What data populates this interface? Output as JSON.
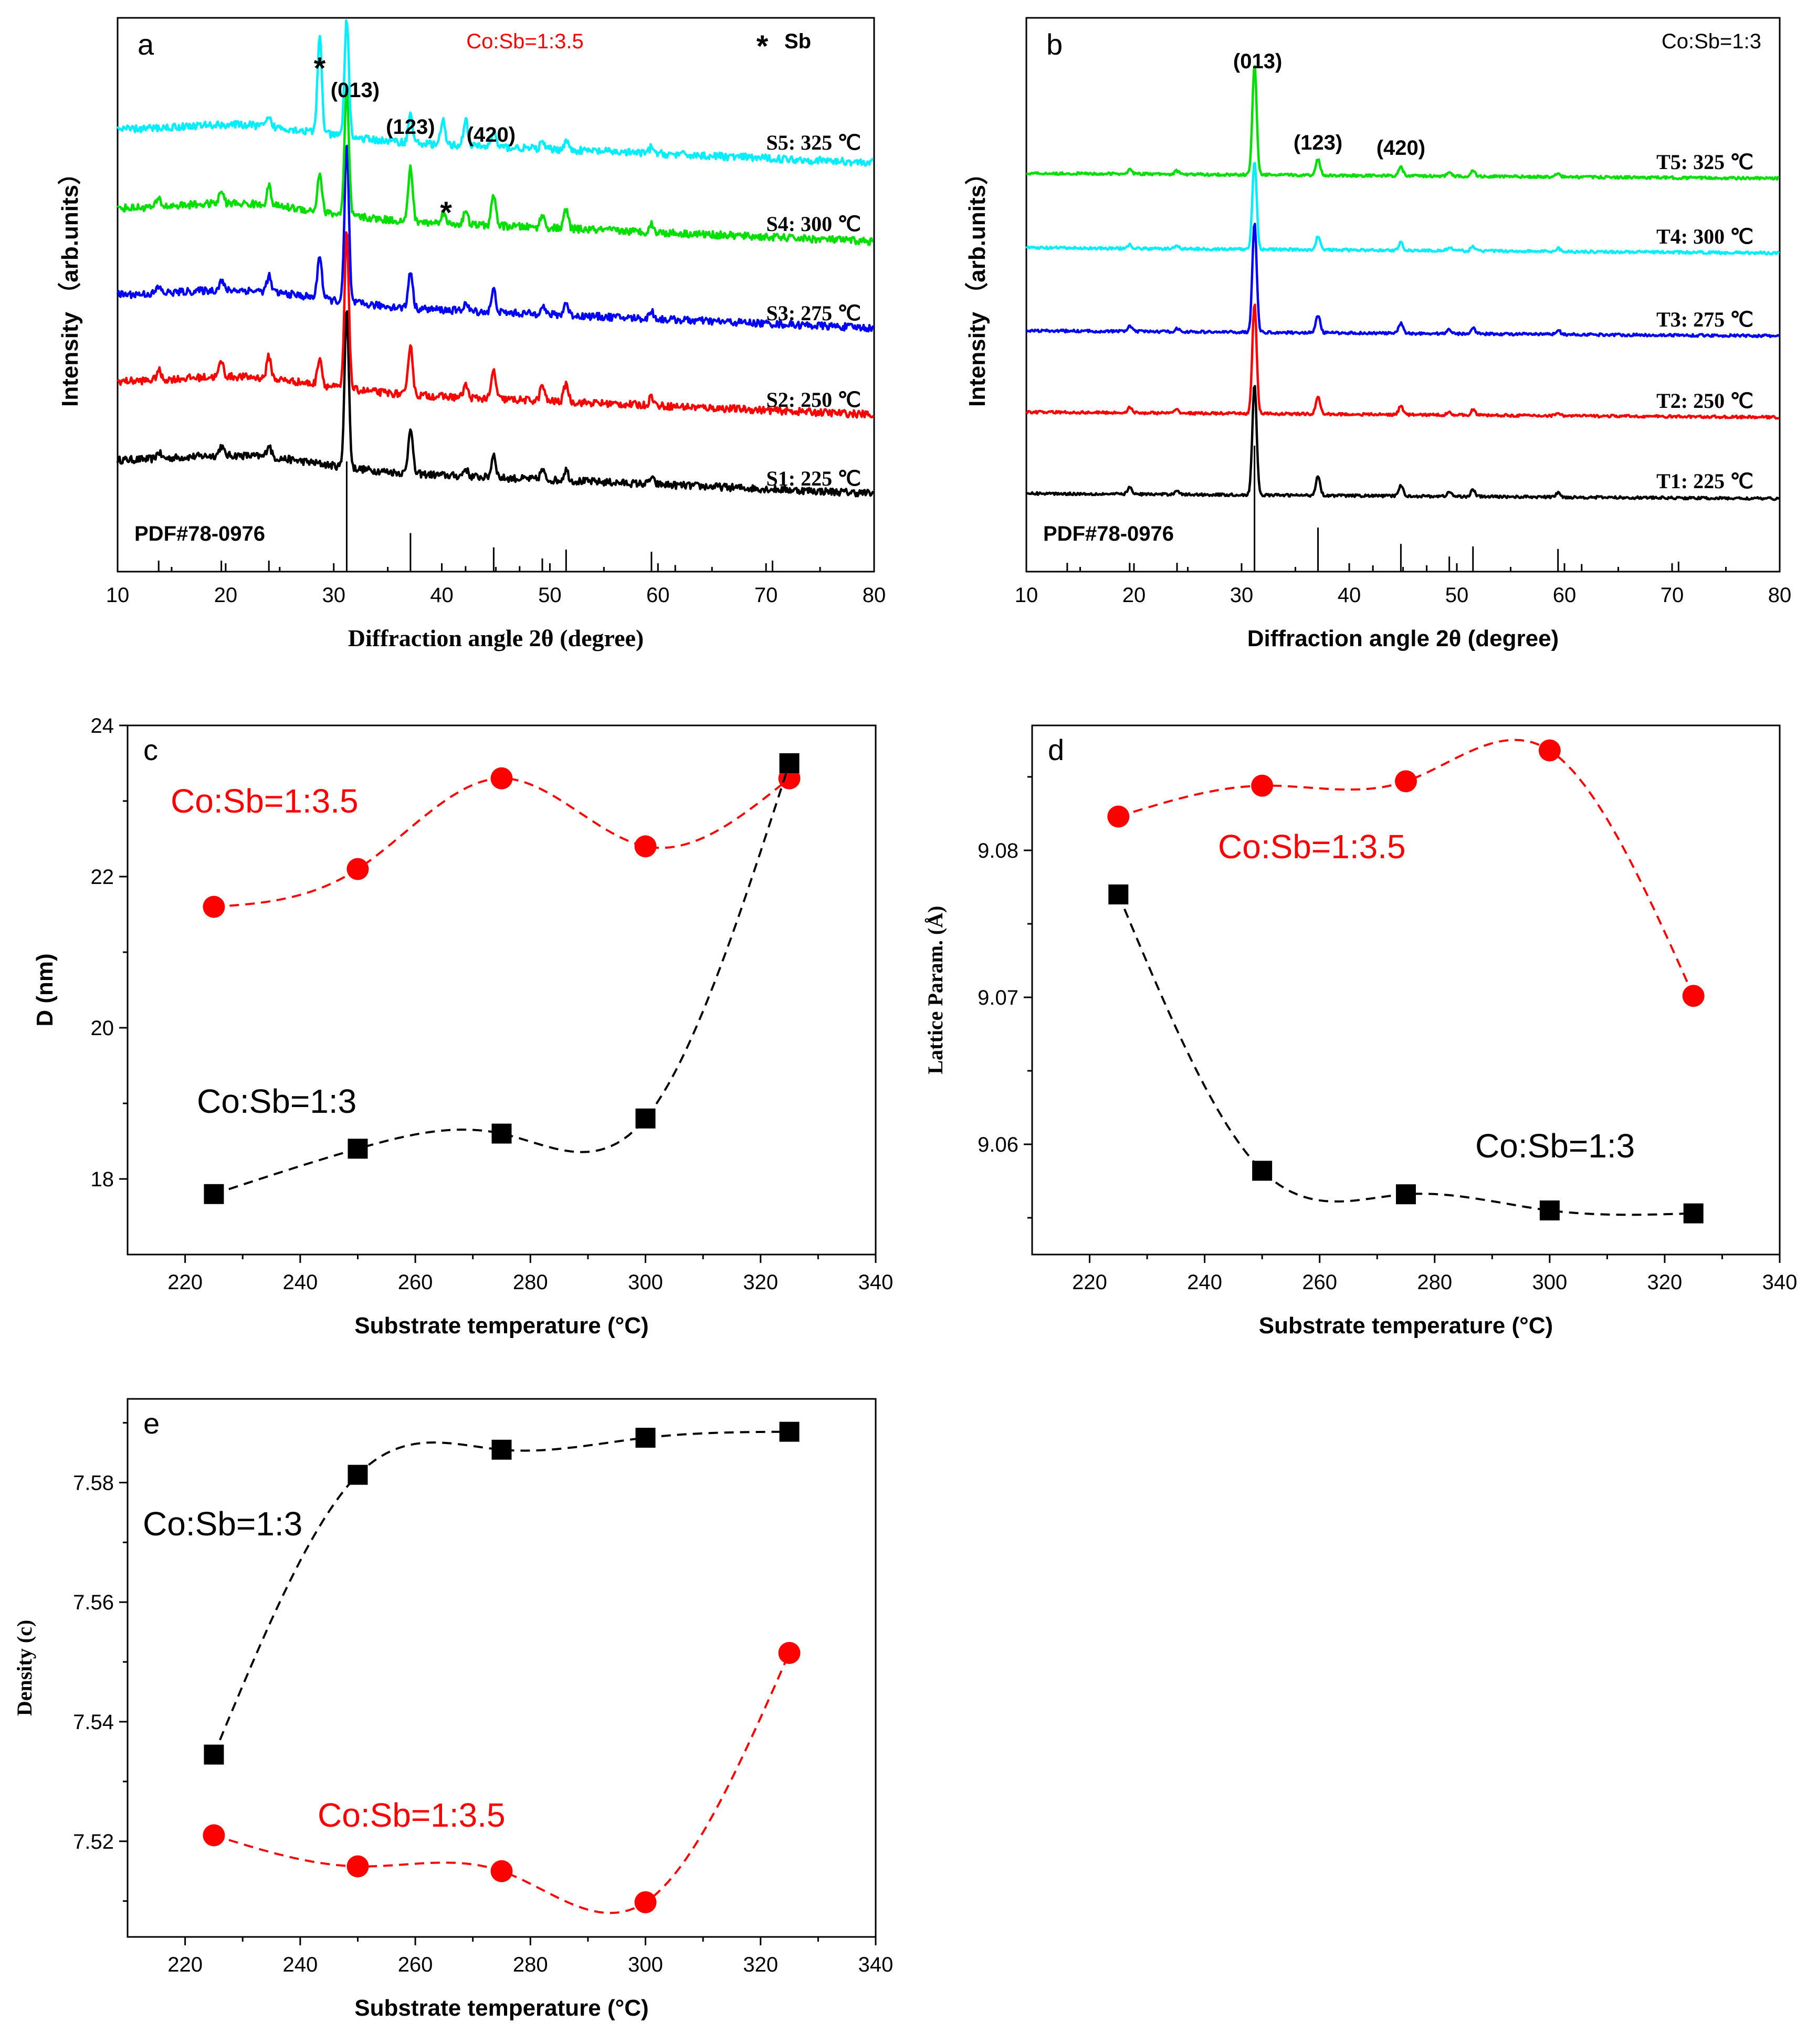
{
  "colors": {
    "black": "#000000",
    "red": "#ff0000",
    "blue": "#0000ff",
    "green": "#00e000",
    "cyan": "#00eeff",
    "dash_red": "#ff0000",
    "dash_black": "#000000"
  },
  "chart_data": [
    {
      "panel": "a",
      "type": "line",
      "title": "Co:Sb=1:3.5",
      "legend_note": "Sb",
      "xlabel": "Diffraction angle 2θ (degree)",
      "ylabel": "Intensity  （arb.units）",
      "xlim": [
        10,
        80
      ],
      "xticks": [
        10,
        20,
        30,
        40,
        50,
        60,
        70,
        80
      ],
      "reference_label": "PDF#78-0976",
      "reference_peaks": [
        {
          "x": 13.8,
          "h": 0.1
        },
        {
          "x": 19.6,
          "h": 0.1
        },
        {
          "x": 24.0,
          "h": 0.1
        },
        {
          "x": 31.2,
          "h": 1.0
        },
        {
          "x": 37.1,
          "h": 0.35
        },
        {
          "x": 42.2,
          "h": 0.05
        },
        {
          "x": 44.8,
          "h": 0.22
        },
        {
          "x": 47.2,
          "h": 0.05
        },
        {
          "x": 49.3,
          "h": 0.12
        },
        {
          "x": 51.5,
          "h": 0.2
        },
        {
          "x": 59.4,
          "h": 0.18
        },
        {
          "x": 61.6,
          "h": 0.06
        },
        {
          "x": 70.6,
          "h": 0.1
        }
      ],
      "miller_labels": [
        {
          "text": "(013)",
          "x": 31.2
        },
        {
          "text": "(123)",
          "x": 37.1
        },
        {
          "text": "(420)",
          "x": 44.8
        }
      ],
      "sb_peaks": [
        28.7,
        40.1
      ],
      "series": [
        {
          "name": "S1: 225 ℃",
          "color": "#000000",
          "peaks": [
            {
              "x": 31.2,
              "h": 1.0
            },
            {
              "x": 37.1,
              "h": 0.3
            },
            {
              "x": 44.8,
              "h": 0.15
            },
            {
              "x": 24.0,
              "h": 0.08
            },
            {
              "x": 19.6,
              "h": 0.06
            },
            {
              "x": 13.8,
              "h": 0.04
            },
            {
              "x": 42.2,
              "h": 0.05
            },
            {
              "x": 49.3,
              "h": 0.06
            },
            {
              "x": 51.5,
              "h": 0.07
            },
            {
              "x": 59.4,
              "h": 0.04
            }
          ]
        },
        {
          "name": "S2: 250 ℃",
          "color": "#ff0000",
          "peaks": [
            {
              "x": 31.2,
              "h": 1.0
            },
            {
              "x": 28.7,
              "h": 0.18
            },
            {
              "x": 37.1,
              "h": 0.33
            },
            {
              "x": 44.8,
              "h": 0.18
            },
            {
              "x": 24.0,
              "h": 0.14
            },
            {
              "x": 19.6,
              "h": 0.1
            },
            {
              "x": 13.8,
              "h": 0.06
            },
            {
              "x": 42.2,
              "h": 0.08
            },
            {
              "x": 49.3,
              "h": 0.1
            },
            {
              "x": 51.5,
              "h": 0.12
            },
            {
              "x": 59.4,
              "h": 0.06
            }
          ]
        },
        {
          "name": "S3: 275 ℃",
          "color": "#0000ff",
          "peaks": [
            {
              "x": 31.2,
              "h": 1.0
            },
            {
              "x": 28.7,
              "h": 0.28
            },
            {
              "x": 37.1,
              "h": 0.24
            },
            {
              "x": 44.8,
              "h": 0.14
            },
            {
              "x": 24.0,
              "h": 0.1
            },
            {
              "x": 19.6,
              "h": 0.06
            },
            {
              "x": 13.8,
              "h": 0.04
            },
            {
              "x": 42.2,
              "h": 0.05
            },
            {
              "x": 49.3,
              "h": 0.06
            },
            {
              "x": 51.5,
              "h": 0.08
            },
            {
              "x": 59.4,
              "h": 0.05
            }
          ]
        },
        {
          "name": "S4: 300 ℃",
          "color": "#00e000",
          "peaks": [
            {
              "x": 31.2,
              "h": 0.8
            },
            {
              "x": 28.7,
              "h": 0.25
            },
            {
              "x": 37.1,
              "h": 0.35
            },
            {
              "x": 44.8,
              "h": 0.2
            },
            {
              "x": 24.0,
              "h": 0.12
            },
            {
              "x": 19.6,
              "h": 0.08
            },
            {
              "x": 13.8,
              "h": 0.05
            },
            {
              "x": 40.1,
              "h": 0.07
            },
            {
              "x": 42.2,
              "h": 0.08
            },
            {
              "x": 49.3,
              "h": 0.08
            },
            {
              "x": 51.5,
              "h": 0.12
            },
            {
              "x": 59.4,
              "h": 0.05
            }
          ]
        },
        {
          "name": "S5: 325 ℃",
          "color": "#00eeff",
          "peaks": [
            {
              "x": 31.2,
              "h": 0.75
            },
            {
              "x": 28.7,
              "h": 0.62
            },
            {
              "x": 37.1,
              "h": 0.18
            },
            {
              "x": 40.1,
              "h": 0.15
            },
            {
              "x": 42.2,
              "h": 0.17
            },
            {
              "x": 44.8,
              "h": 0.1
            },
            {
              "x": 24.0,
              "h": 0.05
            },
            {
              "x": 49.3,
              "h": 0.04
            },
            {
              "x": 51.5,
              "h": 0.06
            },
            {
              "x": 59.4,
              "h": 0.04
            }
          ]
        }
      ]
    },
    {
      "panel": "b",
      "type": "line",
      "title": "Co:Sb=1:3",
      "xlabel": "Diffraction angle 2θ (degree)",
      "ylabel": "Intensity  （arb.units）",
      "xlim": [
        10,
        80
      ],
      "xticks": [
        10,
        20,
        30,
        40,
        50,
        60,
        70,
        80
      ],
      "reference_label": "PDF#78-0976",
      "reference_peaks": [
        {
          "x": 13.8,
          "h": 0.07
        },
        {
          "x": 19.6,
          "h": 0.07
        },
        {
          "x": 24.0,
          "h": 0.07
        },
        {
          "x": 31.2,
          "h": 1.0
        },
        {
          "x": 37.1,
          "h": 0.35
        },
        {
          "x": 42.2,
          "h": 0.05
        },
        {
          "x": 44.8,
          "h": 0.22
        },
        {
          "x": 47.2,
          "h": 0.05
        },
        {
          "x": 49.3,
          "h": 0.12
        },
        {
          "x": 51.5,
          "h": 0.2
        },
        {
          "x": 59.4,
          "h": 0.18
        },
        {
          "x": 61.6,
          "h": 0.06
        },
        {
          "x": 70.6,
          "h": 0.08
        }
      ],
      "miller_labels": [
        {
          "text": "(013)",
          "x": 31.2
        },
        {
          "text": "(123)",
          "x": 37.1
        },
        {
          "text": "(420)",
          "x": 44.8
        }
      ],
      "series": [
        {
          "name": "T1: 225 ℃",
          "color": "#000000",
          "peaks": [
            {
              "x": 31.2,
              "h": 1.0
            },
            {
              "x": 37.1,
              "h": 0.18
            },
            {
              "x": 44.8,
              "h": 0.1
            },
            {
              "x": 19.6,
              "h": 0.06
            },
            {
              "x": 24.0,
              "h": 0.04
            },
            {
              "x": 51.5,
              "h": 0.06
            },
            {
              "x": 49.3,
              "h": 0.04
            },
            {
              "x": 59.4,
              "h": 0.04
            }
          ]
        },
        {
          "name": "T2: 250 ℃",
          "color": "#ff0000",
          "peaks": [
            {
              "x": 31.2,
              "h": 1.0
            },
            {
              "x": 37.1,
              "h": 0.16
            },
            {
              "x": 44.8,
              "h": 0.08
            },
            {
              "x": 19.6,
              "h": 0.05
            },
            {
              "x": 24.0,
              "h": 0.03
            },
            {
              "x": 51.5,
              "h": 0.05
            },
            {
              "x": 49.3,
              "h": 0.03
            },
            {
              "x": 59.4,
              "h": 0.03
            }
          ]
        },
        {
          "name": "T3: 275 ℃",
          "color": "#0000ff",
          "peaks": [
            {
              "x": 31.2,
              "h": 1.0
            },
            {
              "x": 37.1,
              "h": 0.16
            },
            {
              "x": 44.8,
              "h": 0.09
            },
            {
              "x": 19.6,
              "h": 0.05
            },
            {
              "x": 24.0,
              "h": 0.03
            },
            {
              "x": 51.5,
              "h": 0.06
            },
            {
              "x": 49.3,
              "h": 0.04
            },
            {
              "x": 59.4,
              "h": 0.04
            }
          ]
        },
        {
          "name": "T4: 300 ℃",
          "color": "#00eeff",
          "peaks": [
            {
              "x": 31.2,
              "h": 0.8
            },
            {
              "x": 37.1,
              "h": 0.12
            },
            {
              "x": 44.8,
              "h": 0.07
            },
            {
              "x": 19.6,
              "h": 0.04
            },
            {
              "x": 24.0,
              "h": 0.03
            },
            {
              "x": 51.5,
              "h": 0.04
            },
            {
              "x": 49.3,
              "h": 0.03
            },
            {
              "x": 59.4,
              "h": 0.03
            }
          ]
        },
        {
          "name": "T5: 325 ℃",
          "color": "#00e000",
          "peaks": [
            {
              "x": 31.2,
              "h": 1.0
            },
            {
              "x": 37.1,
              "h": 0.15
            },
            {
              "x": 44.8,
              "h": 0.08
            },
            {
              "x": 19.6,
              "h": 0.04
            },
            {
              "x": 24.0,
              "h": 0.03
            },
            {
              "x": 51.5,
              "h": 0.05
            },
            {
              "x": 49.3,
              "h": 0.03
            },
            {
              "x": 59.4,
              "h": 0.03
            }
          ]
        }
      ]
    },
    {
      "panel": "c",
      "type": "scatter",
      "xlabel": "Substrate temperature (°C)",
      "ylabel": "D (nm)",
      "xlim": [
        210,
        340
      ],
      "ylim": [
        17,
        24
      ],
      "xticks": [
        220,
        240,
        260,
        280,
        300,
        320,
        340
      ],
      "yticks": [
        18,
        20,
        22,
        24
      ],
      "series": [
        {
          "name": "Co:Sb=1:3.5",
          "marker": "circle",
          "color": "#ff0000",
          "x": [
            225,
            250,
            275,
            300,
            325
          ],
          "y": [
            21.6,
            22.1,
            23.3,
            22.4,
            23.3
          ]
        },
        {
          "name": "Co:Sb=1:3",
          "marker": "square",
          "color": "#000000",
          "x": [
            225,
            250,
            275,
            300,
            325
          ],
          "y": [
            17.8,
            18.4,
            18.6,
            18.8,
            23.5
          ]
        }
      ]
    },
    {
      "panel": "d",
      "type": "scatter",
      "xlabel": "Substrate temperature (°C)",
      "ylabel": "Lattice Param. (Å)",
      "xlim": [
        210,
        340
      ],
      "ylim": [
        9.0525,
        9.0885
      ],
      "xticks": [
        220,
        240,
        260,
        280,
        300,
        320,
        340
      ],
      "yticks": [
        9.06,
        9.07,
        9.08
      ],
      "series": [
        {
          "name": "Co:Sb=1:3.5",
          "marker": "circle",
          "color": "#ff0000",
          "x": [
            225,
            250,
            275,
            300,
            325
          ],
          "y": [
            9.0823,
            9.0844,
            9.0847,
            9.0868,
            9.0701
          ]
        },
        {
          "name": "Co:Sb=1:3",
          "marker": "square",
          "color": "#000000",
          "x": [
            225,
            250,
            275,
            300,
            325
          ],
          "y": [
            9.077,
            9.0582,
            9.0566,
            9.0555,
            9.0553
          ]
        }
      ]
    },
    {
      "panel": "e",
      "type": "scatter",
      "xlabel": "Substrate temperature (°C)",
      "ylabel": "Density (c)",
      "xlim": [
        210,
        340
      ],
      "ylim": [
        7.504,
        7.594
      ],
      "xticks": [
        220,
        240,
        260,
        280,
        300,
        320,
        340
      ],
      "yticks": [
        7.52,
        7.54,
        7.56,
        7.58
      ],
      "series": [
        {
          "name": "Co:Sb=1:3",
          "marker": "square",
          "color": "#000000",
          "x": [
            225,
            250,
            275,
            300,
            325
          ],
          "y": [
            7.5345,
            7.5813,
            7.5855,
            7.5875,
            7.5885
          ]
        },
        {
          "name": "Co:Sb=1:3.5",
          "marker": "circle",
          "color": "#ff0000",
          "x": [
            225,
            250,
            275,
            300,
            325
          ],
          "y": [
            7.521,
            7.5158,
            7.515,
            7.5098,
            7.5515
          ]
        }
      ]
    }
  ]
}
